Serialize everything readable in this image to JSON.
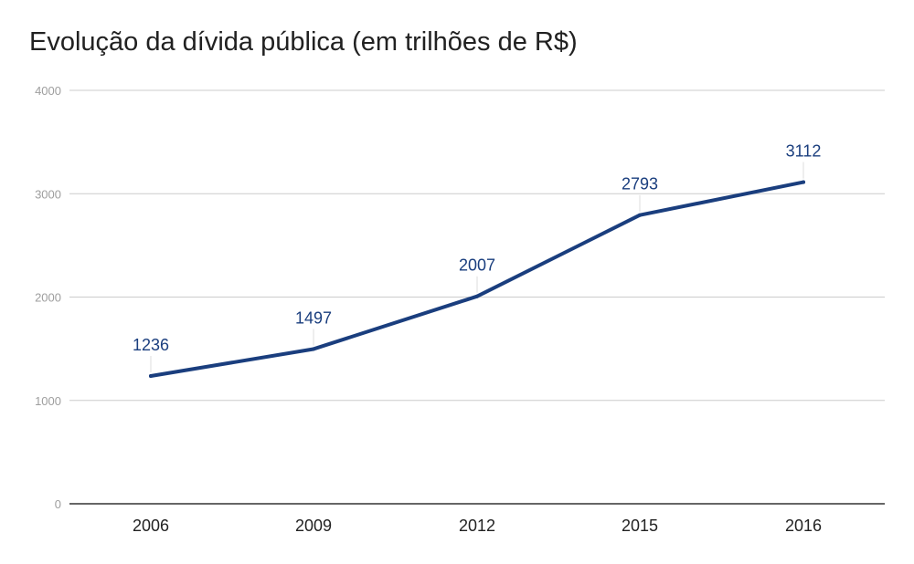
{
  "chart_data": {
    "type": "line",
    "title": "Evolução da dívida pública (em trilhões de R$)",
    "xlabel": "",
    "ylabel": "",
    "categories": [
      "2006",
      "2009",
      "2012",
      "2015",
      "2016"
    ],
    "series": [
      {
        "values": [
          1236,
          1497,
          2007,
          2793,
          3112
        ],
        "color": "#1a3e7e"
      }
    ],
    "ylim": [
      0,
      4000
    ],
    "yticks": [
      "0",
      "1000",
      "2000",
      "3000",
      "4000"
    ],
    "grid": true,
    "data_labels": [
      "1236",
      "1497",
      "2007",
      "2793",
      "3112"
    ],
    "colors": {
      "line": "#1a3e7e",
      "grid": "#cccccc",
      "axis": "#333333",
      "label": "#1a3e7e"
    }
  }
}
